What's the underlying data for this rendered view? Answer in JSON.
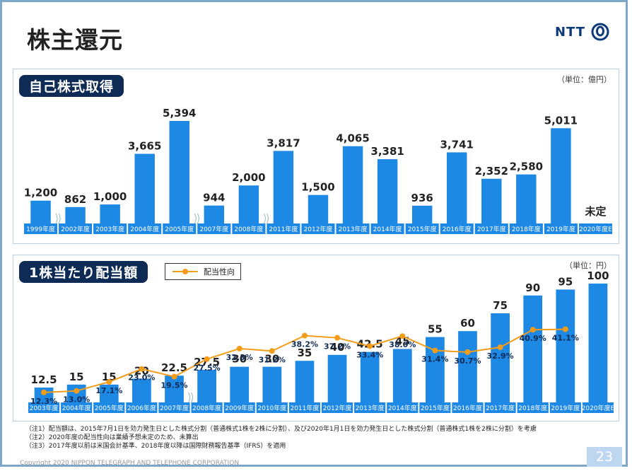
{
  "page": {
    "title": "株主還元",
    "logo_text": "NTT",
    "page_number": "23",
    "copyright": "Copyright 2020 NIPPON TELEGRAPH AND TELEPHONE CORPORATION"
  },
  "notes": [
    "（注1）配当額は、2015年7月1日を効力発生日とした株式分割（普通株式1株を2株に分割）、及び2020年1月1日を効力発生日とした株式分割（普通株式1株を2株に分割）を考慮",
    "（注2）2020年度の配当性向は業績予想未定のため、未算出",
    "（注3）2017年度以前は米国会計基準、2018年度以降は国際財務報告基準（IFRS）を適用"
  ],
  "colors": {
    "bar": "#1e88e5",
    "line": "#f39c1a",
    "label_bg": "#1e88e5",
    "navy": "#0d2b55"
  },
  "chart_data": [
    {
      "type": "bar",
      "title": "自己株式取得",
      "unit": "（単位：億円）",
      "categories": [
        "1999年度",
        "2002年度",
        "2003年度",
        "2004年度",
        "2005年度",
        "2007年度",
        "2008年度",
        "2011年度",
        "2012年度",
        "2013年度",
        "2014年度",
        "2015年度",
        "2016年度",
        "2017年度",
        "2018年度",
        "2019年度",
        "2020年度E"
      ],
      "values": [
        1200,
        862,
        1000,
        3665,
        5394,
        944,
        2000,
        3817,
        1500,
        4065,
        3381,
        936,
        3741,
        2352,
        2580,
        5011,
        null
      ],
      "value_labels": [
        "1,200",
        "862",
        "1,000",
        "3,665",
        "5,394",
        "944",
        "2,000",
        "3,817",
        "1,500",
        "4,065",
        "3,381",
        "936",
        "3,741",
        "2,352",
        "2,580",
        "5,011",
        "未定"
      ],
      "axis_breaks_after": [
        0,
        4,
        6
      ]
    },
    {
      "type": "bar",
      "title": "1株当たり配当額",
      "unit": "（単位：円）",
      "categories": [
        "2003年度",
        "2004年度",
        "2005年度",
        "2006年度",
        "2007年度",
        "2008年度",
        "2009年度",
        "2010年度",
        "2011年度",
        "2012年度",
        "2013年度",
        "2014年度",
        "2015年度",
        "2016年度",
        "2017年度",
        "2018年度",
        "2019年度",
        "2020年度E"
      ],
      "values": [
        12.5,
        15,
        15,
        20,
        22.5,
        27.5,
        30,
        30,
        35,
        40,
        42.5,
        45,
        55,
        60,
        75,
        90,
        95,
        100
      ],
      "value_labels": [
        "12.5",
        "15",
        "15",
        "20",
        "22.5",
        "27.5",
        "30",
        "30",
        "35",
        "40",
        "42.5",
        "45",
        "55",
        "60",
        "75",
        "90",
        "95",
        "100"
      ],
      "axis_breaks_after": [
        4
      ],
      "series": [
        {
          "name": "配当性向",
          "type": "line",
          "values": [
            12.3,
            13.0,
            17.1,
            23.0,
            19.5,
            27.5,
            32.3,
            31.2,
            38.2,
            37.2,
            33.4,
            38.0,
            31.4,
            30.7,
            32.9,
            40.9,
            41.1,
            null
          ],
          "value_labels": [
            "12.3%",
            "13.0%",
            "17.1%",
            "23.0%",
            "19.5%",
            "27.5%",
            "32.3%",
            "31.2%",
            "38.2%",
            "37.2%",
            "33.4%",
            "38.0%",
            "31.4%",
            "30.7%",
            "32.9%",
            "40.9%",
            "41.1%",
            ""
          ]
        }
      ]
    }
  ]
}
